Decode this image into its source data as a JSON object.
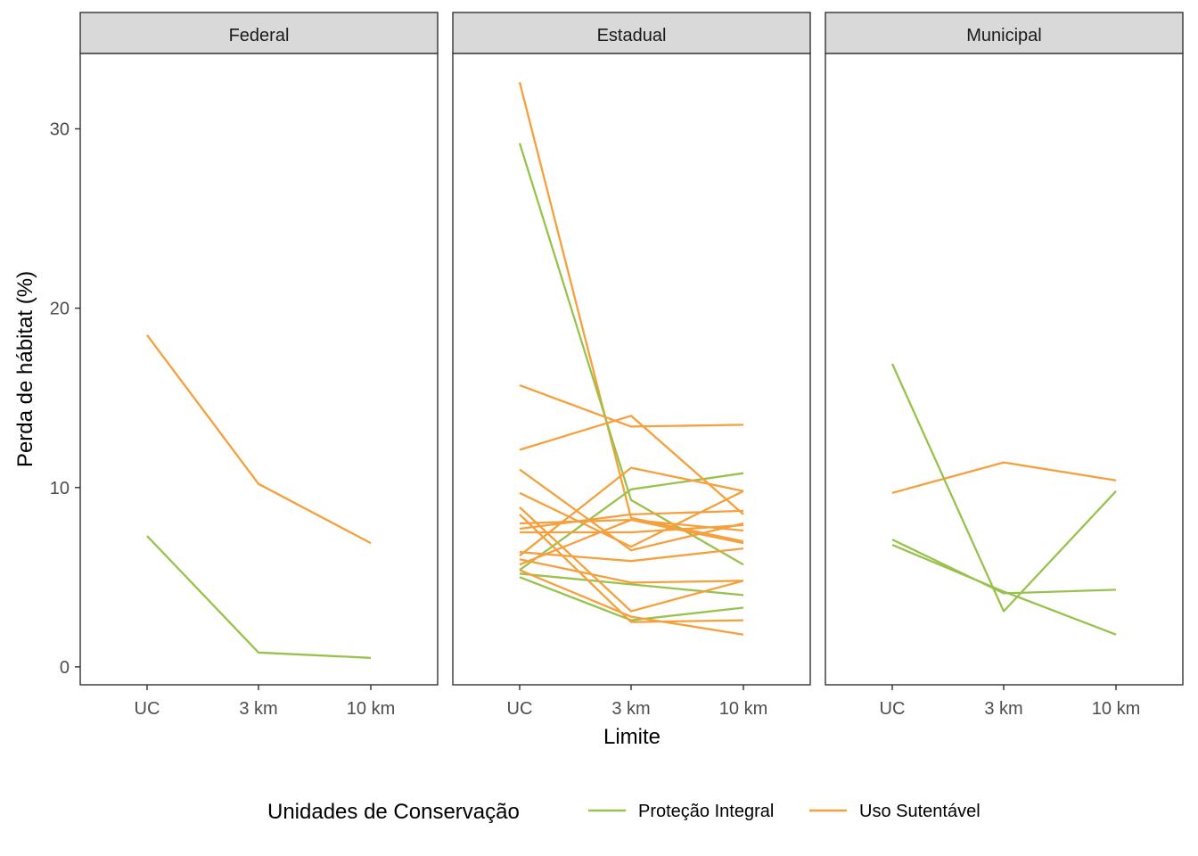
{
  "chart_data": {
    "type": "line",
    "xlabel": "Limite",
    "ylabel": "Perda de hábitat (%)",
    "x_categories": [
      "UC",
      "3 km",
      "10 km"
    ],
    "y_ticks": [
      0,
      10,
      20,
      30
    ],
    "ylim": [
      -1,
      34.2
    ],
    "grid": false,
    "legend": {
      "title": "Unidades de Conservação",
      "placement": "bottom",
      "entries": [
        {
          "name": "Proteção Integral",
          "color": "#99c24d"
        },
        {
          "name": "Uso Sutentável",
          "color": "#f5a03c"
        }
      ]
    },
    "panels": [
      {
        "title": "Federal",
        "series": [
          {
            "group": "Uso Sutentável",
            "values": [
              18.5,
              10.2,
              6.9
            ]
          },
          {
            "group": "Proteção Integral",
            "values": [
              7.3,
              0.8,
              0.5
            ]
          }
        ]
      },
      {
        "title": "Estadual",
        "series": [
          {
            "group": "Uso Sutentável",
            "values": [
              32.6,
              8.3,
              7.0
            ]
          },
          {
            "group": "Proteção Integral",
            "values": [
              29.2,
              9.3,
              5.7
            ]
          },
          {
            "group": "Proteção Integral",
            "values": [
              5.4,
              9.9,
              10.8
            ]
          },
          {
            "group": "Proteção Integral",
            "values": [
              5.2,
              4.6,
              4.0
            ]
          },
          {
            "group": "Proteção Integral",
            "values": [
              5.0,
              2.6,
              3.3
            ]
          },
          {
            "group": "Uso Sutentável",
            "values": [
              15.7,
              13.4,
              13.5
            ]
          },
          {
            "group": "Uso Sutentável",
            "values": [
              12.1,
              14.0,
              8.5
            ]
          },
          {
            "group": "Uso Sutentável",
            "values": [
              11.0,
              6.5,
              8.0
            ]
          },
          {
            "group": "Uso Sutentável",
            "values": [
              9.7,
              6.7,
              9.8
            ]
          },
          {
            "group": "Uso Sutentável",
            "values": [
              8.9,
              3.1,
              4.8
            ]
          },
          {
            "group": "Uso Sutentável",
            "values": [
              8.5,
              2.5,
              2.6
            ]
          },
          {
            "group": "Uso Sutentável",
            "values": [
              8.0,
              8.2,
              7.6
            ]
          },
          {
            "group": "Uso Sutentável",
            "values": [
              7.7,
              8.5,
              8.7
            ]
          },
          {
            "group": "Uso Sutentável",
            "values": [
              7.5,
              7.5,
              7.9
            ]
          },
          {
            "group": "Uso Sutentável",
            "values": [
              6.4,
              5.9,
              6.6
            ]
          },
          {
            "group": "Uso Sutentável",
            "values": [
              6.2,
              11.1,
              9.8
            ]
          },
          {
            "group": "Uso Sutentável",
            "values": [
              6.0,
              4.7,
              4.8
            ]
          },
          {
            "group": "Uso Sutentável",
            "values": [
              5.7,
              8.2,
              6.9
            ]
          },
          {
            "group": "Uso Sutentável",
            "values": [
              5.4,
              2.8,
              1.8
            ]
          }
        ]
      },
      {
        "title": "Municipal",
        "series": [
          {
            "group": "Uso Sutentável",
            "values": [
              9.7,
              11.4,
              10.4
            ]
          },
          {
            "group": "Proteção Integral",
            "values": [
              16.9,
              3.1,
              9.8
            ]
          },
          {
            "group": "Proteção Integral",
            "values": [
              7.1,
              4.1,
              4.3
            ]
          },
          {
            "group": "Proteção Integral",
            "values": [
              6.8,
              4.2,
              1.8
            ]
          }
        ]
      }
    ]
  }
}
